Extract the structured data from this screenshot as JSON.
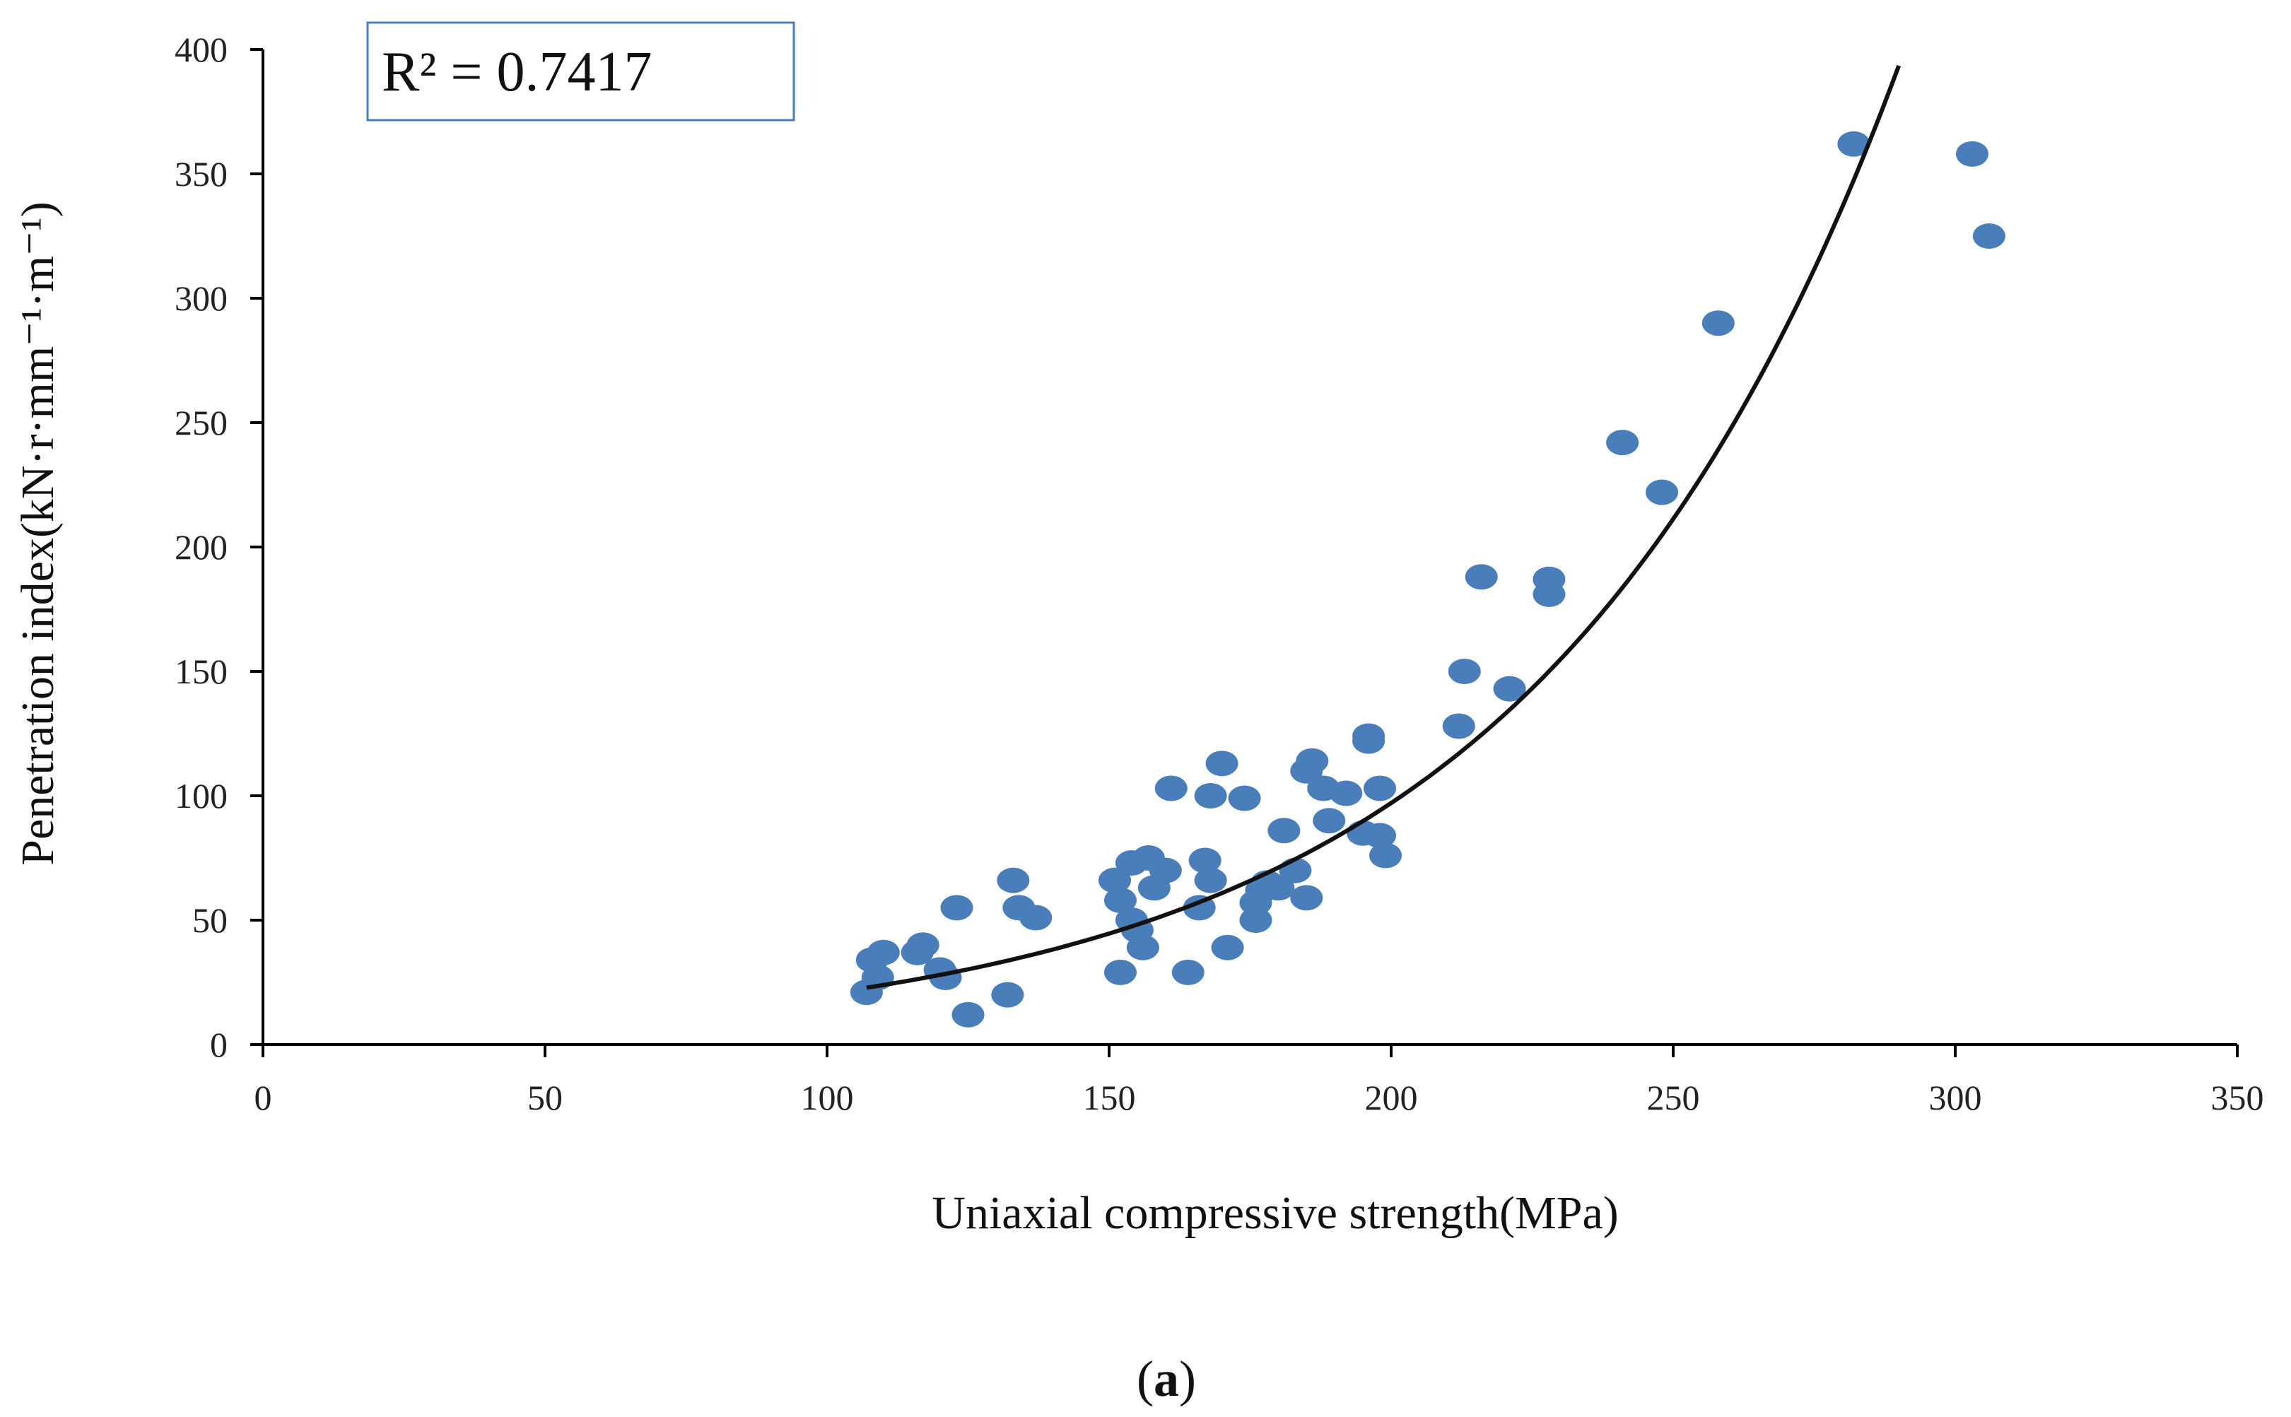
{
  "chart_data": {
    "type": "scatter",
    "title": "",
    "xlabel": "Uniaxial compressive strength(MPa)",
    "ylabel": "Penetration index(kN·r·mm⁻¹·m⁻¹)",
    "xlim": [
      0,
      350
    ],
    "ylim": [
      0,
      400
    ],
    "xticks": [
      0,
      50,
      100,
      150,
      200,
      250,
      300,
      350
    ],
    "yticks": [
      0,
      50,
      100,
      150,
      200,
      250,
      300,
      350,
      400
    ],
    "grid": false,
    "annotation": "R² = 0.7417",
    "caption_open": "(",
    "caption_letter": "a",
    "caption_close": ")",
    "marker_color": "#4a7ebb",
    "trend_color": "#111111",
    "trendline": {
      "type": "exponential",
      "a": 4.33,
      "b": 0.01555,
      "x_start": 107,
      "x_end": 290
    },
    "series": [
      {
        "name": "data",
        "points": [
          [
            107,
            21
          ],
          [
            108,
            34
          ],
          [
            109,
            27
          ],
          [
            110,
            37
          ],
          [
            116,
            37
          ],
          [
            117,
            40
          ],
          [
            120,
            30
          ],
          [
            121,
            27
          ],
          [
            123,
            55
          ],
          [
            125,
            12
          ],
          [
            132,
            20
          ],
          [
            133,
            66
          ],
          [
            134,
            55
          ],
          [
            137,
            51
          ],
          [
            151,
            66
          ],
          [
            152,
            29
          ],
          [
            152,
            58
          ],
          [
            154,
            50
          ],
          [
            154,
            73
          ],
          [
            155,
            46
          ],
          [
            156,
            39
          ],
          [
            157,
            75
          ],
          [
            158,
            63
          ],
          [
            160,
            70
          ],
          [
            161,
            103
          ],
          [
            164,
            29
          ],
          [
            166,
            55
          ],
          [
            167,
            74
          ],
          [
            168,
            66
          ],
          [
            168,
            100
          ],
          [
            170,
            113
          ],
          [
            171,
            39
          ],
          [
            174,
            99
          ],
          [
            176,
            50
          ],
          [
            176,
            57
          ],
          [
            177,
            62
          ],
          [
            178,
            65
          ],
          [
            180,
            63
          ],
          [
            181,
            86
          ],
          [
            183,
            70
          ],
          [
            185,
            59
          ],
          [
            185,
            110
          ],
          [
            186,
            114
          ],
          [
            188,
            103
          ],
          [
            189,
            90
          ],
          [
            192,
            101
          ],
          [
            195,
            85
          ],
          [
            196,
            122
          ],
          [
            196,
            124
          ],
          [
            198,
            84
          ],
          [
            198,
            103
          ],
          [
            199,
            76
          ],
          [
            212,
            128
          ],
          [
            213,
            150
          ],
          [
            216,
            188
          ],
          [
            221,
            143
          ],
          [
            228,
            187
          ],
          [
            228,
            181
          ],
          [
            241,
            242
          ],
          [
            248,
            222
          ],
          [
            258,
            290
          ],
          [
            282,
            362
          ],
          [
            303,
            358
          ],
          [
            306,
            325
          ]
        ]
      }
    ]
  }
}
